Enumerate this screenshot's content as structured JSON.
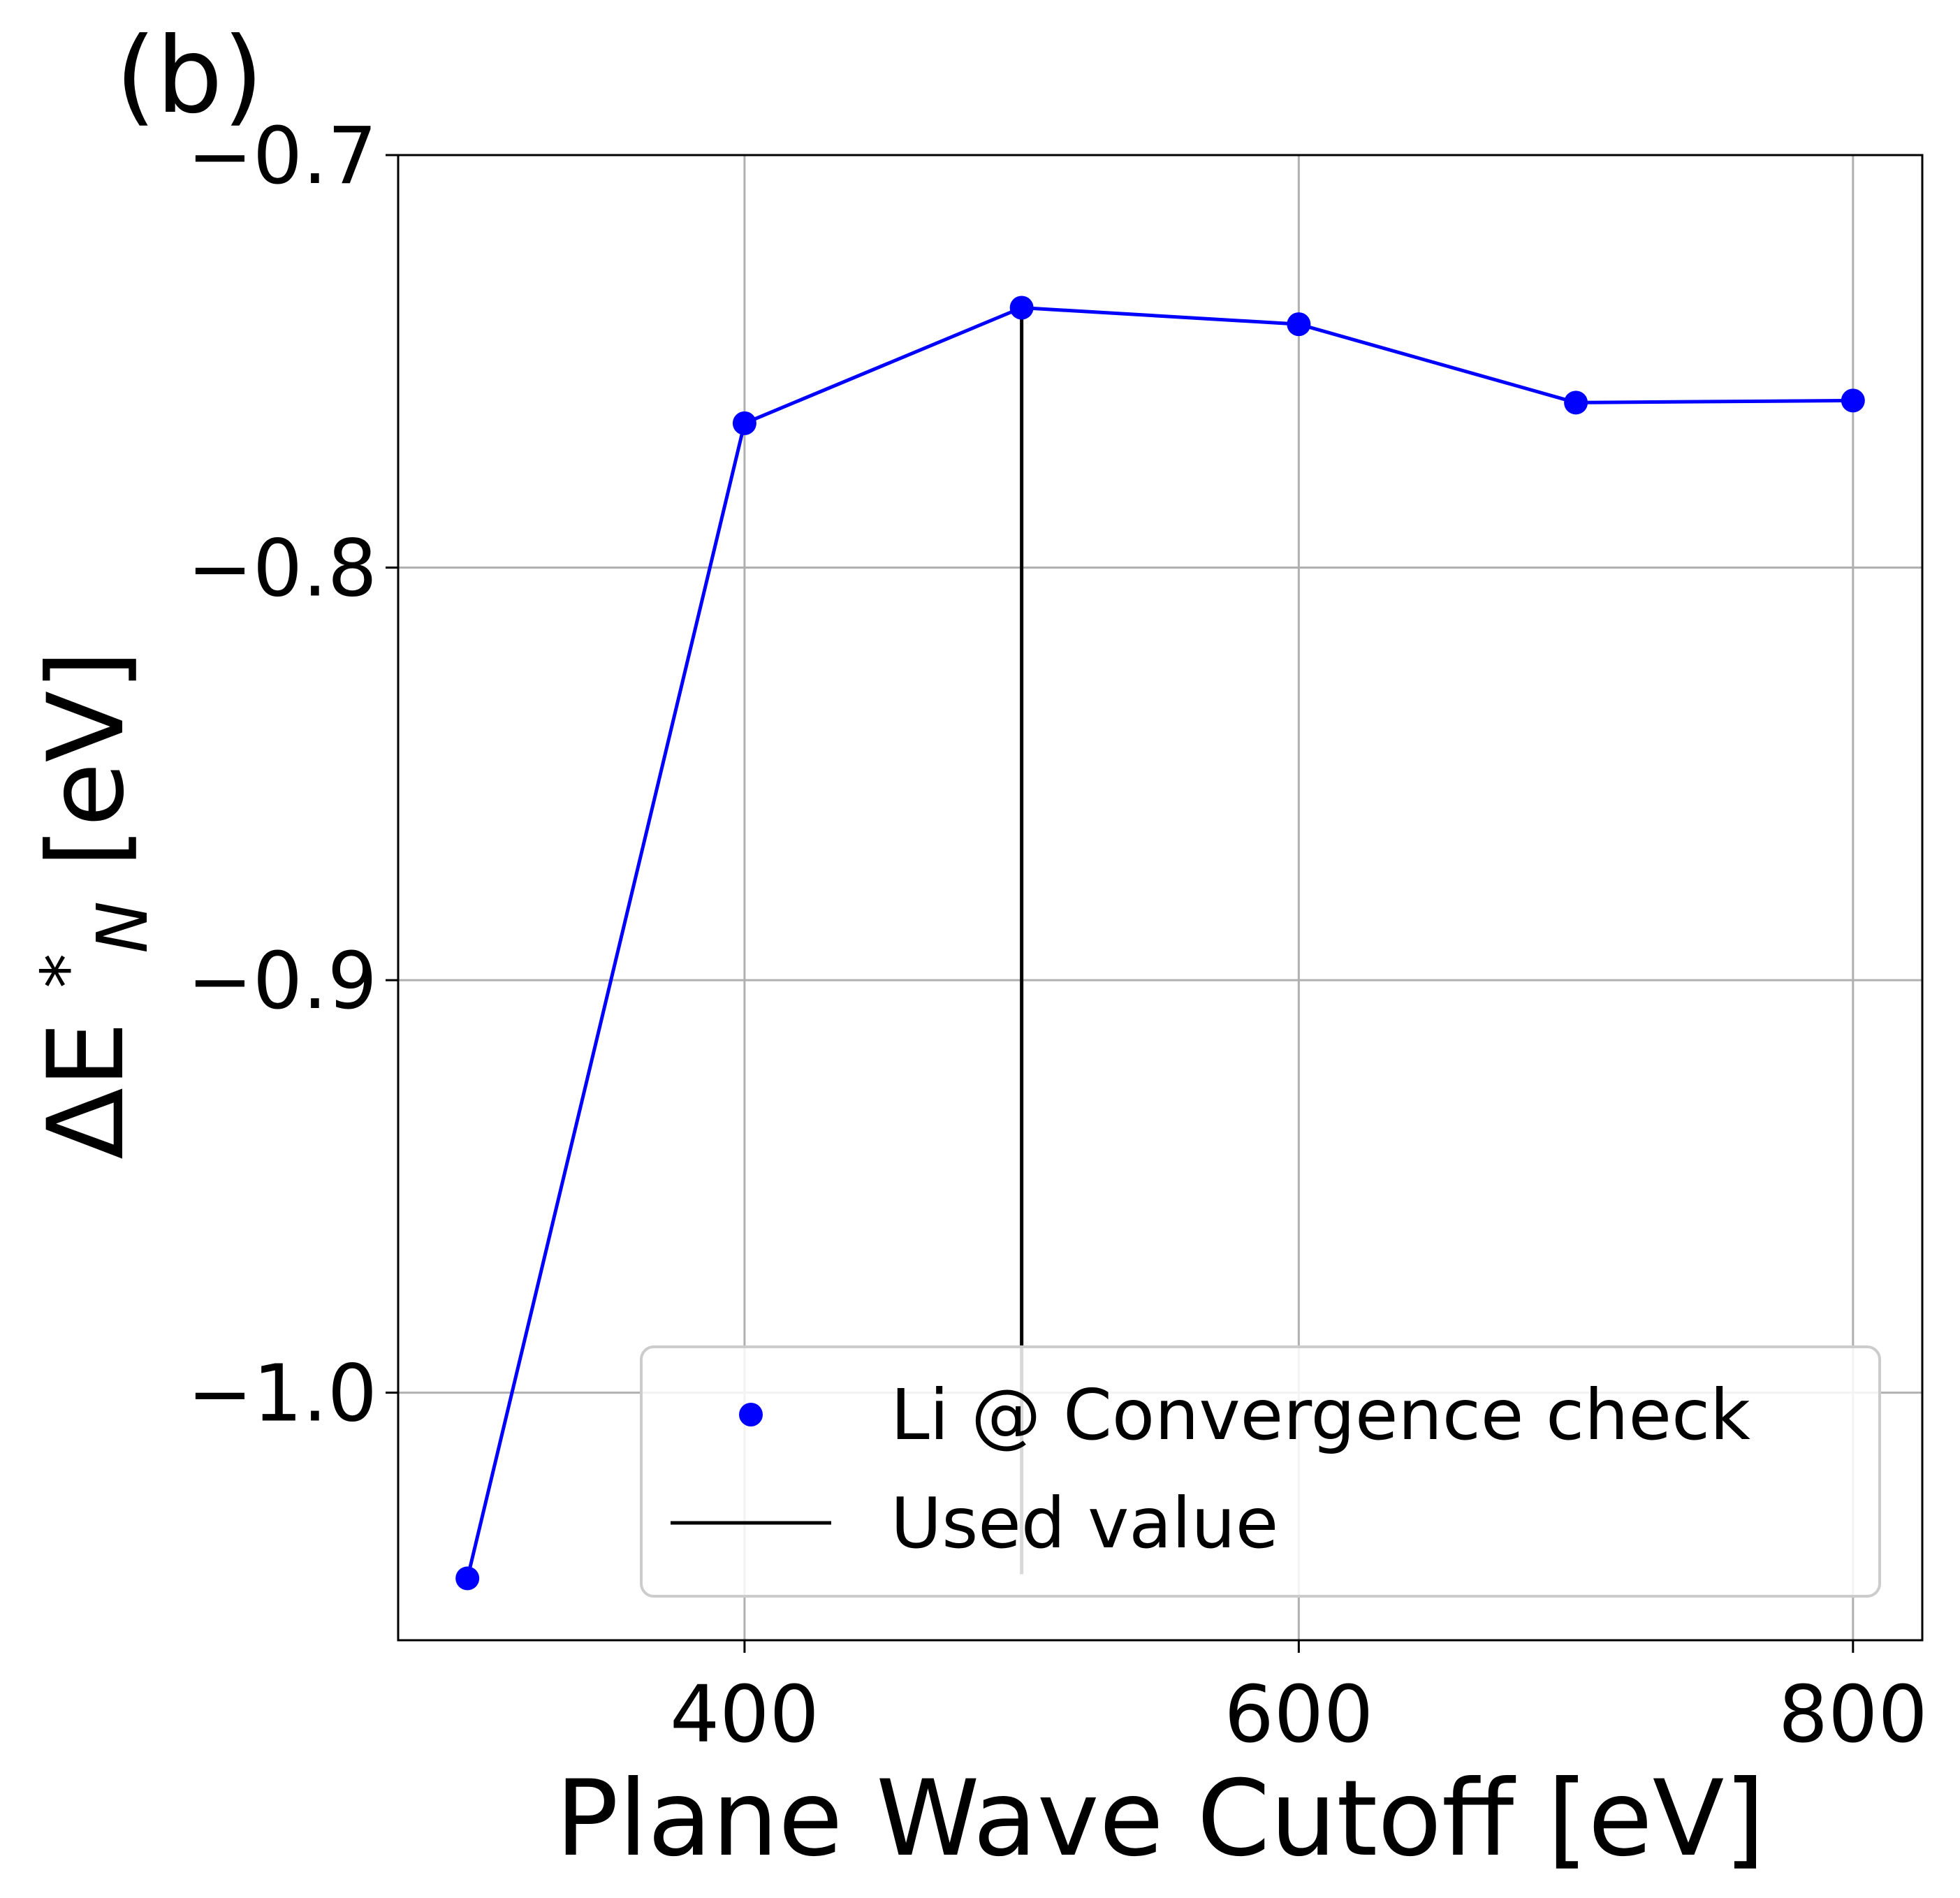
{
  "panel_label": "(b)",
  "chart_data": {
    "type": "line",
    "xlabel": "Plane Wave Cutoff [eV]",
    "ylabel": "ΔE *N [eV]",
    "ylabel_parts": {
      "base": "ΔE ",
      "sup": "*",
      "sub": "N",
      "unit": " [eV]"
    },
    "xlim": [
      275,
      825
    ],
    "ylim": [
      -1.06,
      -0.7
    ],
    "xticks": [
      400,
      600,
      800
    ],
    "yticks": [
      -0.7,
      -0.8,
      -0.9,
      -1.0
    ],
    "xtick_labels": [
      "400",
      "600",
      "800"
    ],
    "ytick_labels": [
      "−0.7",
      "−0.8",
      "−0.9",
      "−1.0"
    ],
    "grid": true,
    "legend_position": "lower-right",
    "series": [
      {
        "name": "Li @ Convergence check",
        "color": "#0000ff",
        "marker": "circle",
        "x": [
          300,
          400,
          500,
          600,
          700,
          800
        ],
        "y": [
          -1.045,
          -0.765,
          -0.737,
          -0.741,
          -0.76,
          -0.7595
        ]
      }
    ],
    "used_value": {
      "name": "Used value",
      "color": "#000000",
      "x": 500,
      "y_from": -1.044,
      "y_to": -0.737
    }
  }
}
